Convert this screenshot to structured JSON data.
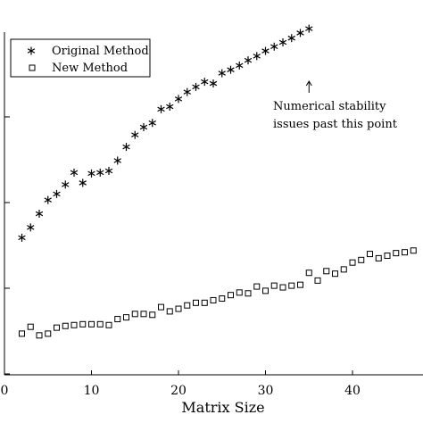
{
  "chart_data": {
    "type": "scatter",
    "title": "",
    "xlabel": "Matrix Size",
    "ylabel": "",
    "yscale": "log",
    "xlim": [
      0,
      48
    ],
    "ylim_log10": [
      0.0,
      4.0
    ],
    "xticks": [
      0,
      10,
      20,
      30,
      40
    ],
    "xtick_labels": [
      "0",
      "10",
      "20",
      "30",
      "40"
    ],
    "grid": false,
    "legend_position": "top-left",
    "series": [
      {
        "name": "Original Method",
        "marker": "asterisk",
        "x": [
          2,
          3,
          4,
          5,
          6,
          7,
          8,
          9,
          10,
          11,
          12,
          13,
          14,
          15,
          16,
          17,
          18,
          19,
          20,
          21,
          22,
          23,
          24,
          25,
          26,
          27,
          28,
          29,
          30,
          31,
          32,
          33,
          34,
          35
        ],
        "log10_y": [
          0.59,
          0.71,
          0.87,
          1.03,
          1.1,
          1.21,
          1.35,
          1.23,
          1.34,
          1.35,
          1.37,
          1.49,
          1.65,
          1.79,
          1.88,
          1.93,
          2.09,
          2.12,
          2.21,
          2.29,
          2.35,
          2.41,
          2.39,
          2.51,
          2.55,
          2.6,
          2.66,
          2.71,
          2.77,
          2.82,
          2.87,
          2.92,
          2.98,
          3.03
        ]
      },
      {
        "name": "New Method",
        "marker": "square",
        "x": [
          2,
          3,
          4,
          5,
          6,
          7,
          8,
          9,
          10,
          11,
          12,
          13,
          14,
          15,
          16,
          17,
          18,
          19,
          20,
          21,
          22,
          23,
          24,
          25,
          26,
          27,
          28,
          29,
          30,
          31,
          32,
          33,
          34,
          35,
          36,
          37,
          38,
          39,
          40,
          41,
          42,
          43,
          44,
          45,
          46,
          47,
          48
        ],
        "log10_y": [
          -0.53,
          -0.45,
          -0.55,
          -0.53,
          -0.46,
          -0.44,
          -0.43,
          -0.42,
          -0.42,
          -0.42,
          -0.43,
          -0.36,
          -0.34,
          -0.3,
          -0.3,
          -0.31,
          -0.22,
          -0.27,
          -0.24,
          -0.2,
          -0.17,
          -0.17,
          -0.14,
          -0.12,
          -0.08,
          -0.05,
          -0.06,
          0.02,
          -0.03,
          0.03,
          0.01,
          0.03,
          0.04,
          0.18,
          0.09,
          0.2,
          0.17,
          0.22,
          0.3,
          0.33,
          0.4,
          0.35,
          0.38,
          0.41,
          0.42,
          0.44,
          0.47
        ]
      }
    ],
    "annotation": {
      "lines": [
        "Numerical stability",
        "issues past this point"
      ],
      "arrow_target_x": 35
    }
  }
}
